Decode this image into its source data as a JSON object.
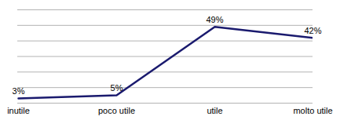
{
  "chart_data": {
    "type": "line",
    "categories": [
      "inutile",
      "poco utile",
      "utile",
      "molto utile"
    ],
    "values": [
      3,
      5,
      49,
      42
    ],
    "value_labels": [
      "3%",
      "5%",
      "49%",
      "42%"
    ],
    "color": "#1a1a6e",
    "ylim": [
      0,
      60
    ],
    "yticks": [
      0,
      10,
      20,
      30,
      40,
      50,
      60
    ],
    "grid": true,
    "data_labels": true,
    "tick_labels": "x"
  }
}
